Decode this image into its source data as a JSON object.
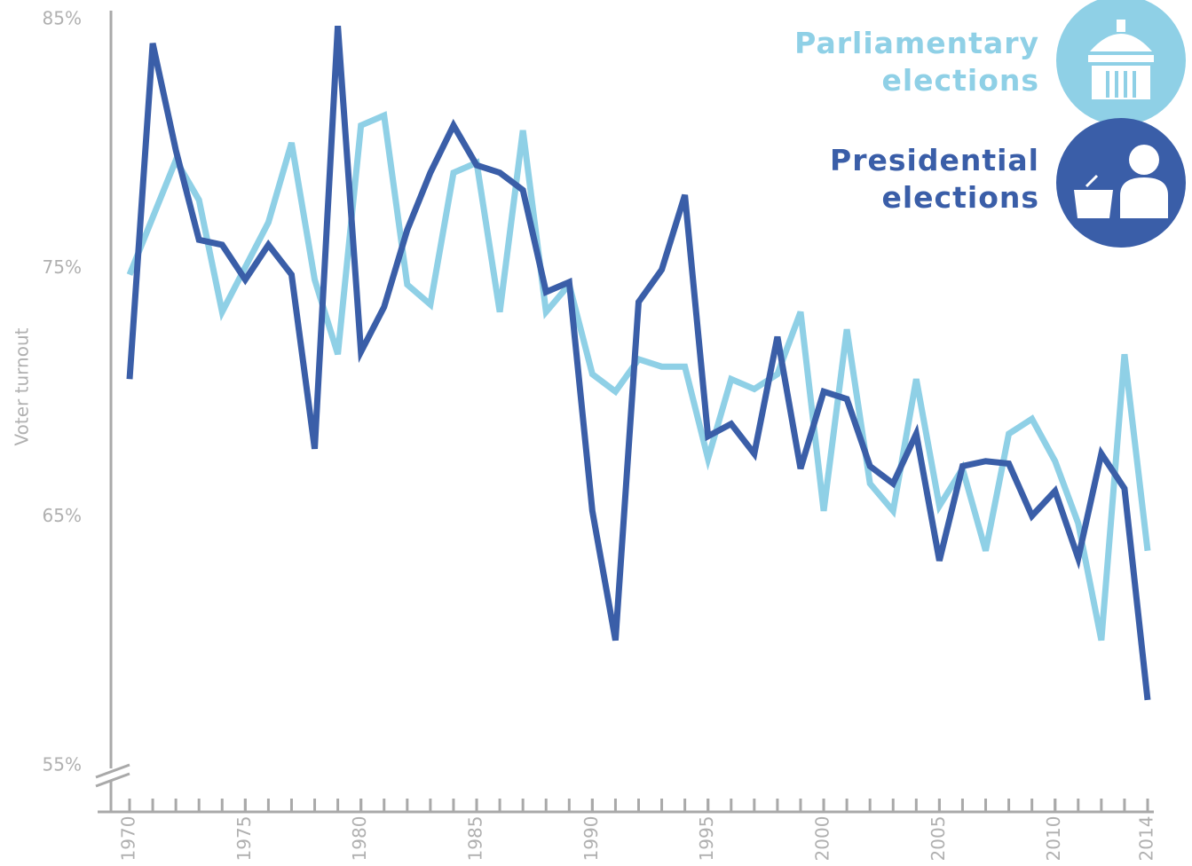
{
  "chart_data": {
    "type": "line",
    "y_label": "Voter turnout",
    "x": [
      1970,
      1971,
      1972,
      1973,
      1974,
      1975,
      1976,
      1977,
      1978,
      1979,
      1980,
      1981,
      1982,
      1983,
      1984,
      1985,
      1986,
      1987,
      1988,
      1989,
      1990,
      1991,
      1992,
      1993,
      1994,
      1995,
      1996,
      1997,
      1998,
      1999,
      2000,
      2001,
      2002,
      2003,
      2004,
      2005,
      2006,
      2007,
      2008,
      2009,
      2010,
      2011,
      2012,
      2013,
      2014
    ],
    "xlim": [
      1970,
      2014
    ],
    "xticks": [
      1970,
      1975,
      1980,
      1985,
      1990,
      1995,
      2000,
      2005,
      2010,
      2014
    ],
    "ylim": [
      53,
      85.2
    ],
    "yticks": [
      {
        "value": 55,
        "label": "55%"
      },
      {
        "value": 65,
        "label": "65%"
      },
      {
        "value": 75,
        "label": "75%"
      },
      {
        "value": 85,
        "label": "85%"
      }
    ],
    "series": [
      {
        "name": "Parliamentary elections",
        "color": "#8fd0e6",
        "values": [
          74.6,
          76.9,
          79.2,
          77.6,
          73.1,
          74.9,
          76.7,
          79.9,
          74.4,
          71.4,
          80.6,
          81.0,
          74.2,
          73.4,
          78.7,
          79.1,
          73.1,
          80.4,
          73.1,
          74.2,
          70.6,
          69.9,
          71.2,
          70.9,
          70.9,
          67.2,
          70.4,
          70.0,
          70.6,
          73.1,
          65.1,
          72.4,
          66.2,
          65.1,
          70.4,
          65.3,
          66.8,
          63.5,
          68.2,
          68.8,
          67.1,
          64.6,
          59.9,
          71.4,
          63.5
        ]
      },
      {
        "name": "Presidential elections",
        "color": "#3a5ea8",
        "values": [
          70.4,
          83.9,
          79.6,
          76.0,
          75.8,
          74.4,
          75.8,
          74.6,
          67.6,
          84.6,
          71.5,
          73.3,
          76.4,
          78.7,
          80.6,
          79.0,
          78.7,
          78.0,
          73.9,
          74.3,
          65.1,
          59.9,
          73.5,
          74.8,
          77.8,
          68.1,
          68.6,
          67.4,
          72.1,
          66.8,
          69.9,
          69.6,
          66.9,
          66.2,
          68.2,
          63.1,
          66.9,
          67.1,
          67.0,
          64.9,
          65.9,
          63.2,
          67.4,
          66.0,
          57.5
        ]
      }
    ]
  }
}
